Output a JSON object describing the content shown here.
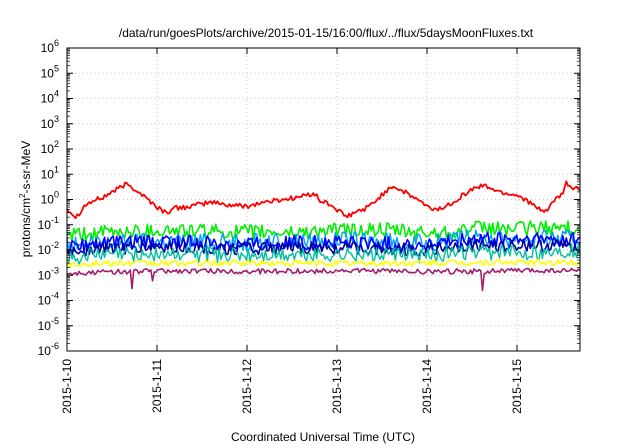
{
  "chart_data": {
    "type": "line",
    "title": "/data/run/goesPlots/archive/2015-01-15/16:00/flux/../flux/5daysMoonFluxes.txt",
    "xlabel": "Coordinated Universal Time (UTC)",
    "ylabel": {
      "base": "protons/cm",
      "sup": "2",
      "rest": "-s-sr-MeV"
    },
    "yscale": "log",
    "ylim": [
      1e-06,
      1000000.0
    ],
    "yticks": [
      {
        "exp": "-6"
      },
      {
        "exp": "-5"
      },
      {
        "exp": "-4"
      },
      {
        "exp": "-3"
      },
      {
        "exp": "-2"
      },
      {
        "exp": "-1"
      },
      {
        "exp": "0"
      },
      {
        "exp": "1"
      },
      {
        "exp": "2"
      },
      {
        "exp": "3"
      },
      {
        "exp": "4"
      },
      {
        "exp": "5"
      },
      {
        "exp": "6"
      }
    ],
    "ytick_base": "10",
    "xlim_days": [
      0,
      5.7
    ],
    "xticks": [
      "2015-1-10",
      "2015-1-11",
      "2015-1-12",
      "2015-1-13",
      "2015-1-14",
      "2015-1-15"
    ],
    "grid": true,
    "colors": {
      "red": "#ff0000",
      "green": "#00ee00",
      "blue": "#0000ff",
      "navy": "#0000a0",
      "aqua": "#00a0ff",
      "teal": "#00c0a0",
      "yellow": "#ffff00",
      "purple": "#a0206e"
    },
    "series": [
      {
        "color_key": "red",
        "width": 1.8,
        "noise": 0.1,
        "spikes": [],
        "points": [
          [
            0,
            0.45
          ],
          [
            0.1,
            0.2
          ],
          [
            0.2,
            0.6
          ],
          [
            0.3,
            0.9
          ],
          [
            0.4,
            1.2
          ],
          [
            0.5,
            2.0
          ],
          [
            0.6,
            3.0
          ],
          [
            0.65,
            4.0
          ],
          [
            0.7,
            3.5
          ],
          [
            0.8,
            2.0
          ],
          [
            0.9,
            1.0
          ],
          [
            1.0,
            0.5
          ],
          [
            1.1,
            0.3
          ],
          [
            1.2,
            0.45
          ],
          [
            1.4,
            0.55
          ],
          [
            1.6,
            0.8
          ],
          [
            1.8,
            0.6
          ],
          [
            2.0,
            0.55
          ],
          [
            2.2,
            0.8
          ],
          [
            2.4,
            1.0
          ],
          [
            2.6,
            1.3
          ],
          [
            2.75,
            1.8
          ],
          [
            2.8,
            0.9
          ],
          [
            2.9,
            0.7
          ],
          [
            3.0,
            0.4
          ],
          [
            3.1,
            0.2
          ],
          [
            3.2,
            0.3
          ],
          [
            3.35,
            0.5
          ],
          [
            3.5,
            1.5
          ],
          [
            3.6,
            3.5
          ],
          [
            3.7,
            2.5
          ],
          [
            3.8,
            1.5
          ],
          [
            3.9,
            1.0
          ],
          [
            4.0,
            0.5
          ],
          [
            4.1,
            0.4
          ],
          [
            4.2,
            0.5
          ],
          [
            4.4,
            1.5
          ],
          [
            4.5,
            2.5
          ],
          [
            4.6,
            3.5
          ],
          [
            4.7,
            3.0
          ],
          [
            4.8,
            2.0
          ],
          [
            5.0,
            1.5
          ],
          [
            5.1,
            1.0
          ],
          [
            5.2,
            0.5
          ],
          [
            5.3,
            0.3
          ],
          [
            5.4,
            0.8
          ],
          [
            5.5,
            1.5
          ],
          [
            5.55,
            4.5
          ],
          [
            5.6,
            3.0
          ],
          [
            5.7,
            2.5
          ]
        ]
      },
      {
        "color_key": "green",
        "width": 1.6,
        "noise": 0.3,
        "spikes": [],
        "points": [
          [
            0,
            0.035
          ],
          [
            0.5,
            0.05
          ],
          [
            1.0,
            0.06
          ],
          [
            1.5,
            0.055
          ],
          [
            2.0,
            0.05
          ],
          [
            2.5,
            0.05
          ],
          [
            3.0,
            0.06
          ],
          [
            3.5,
            0.06
          ],
          [
            4.0,
            0.045
          ],
          [
            4.5,
            0.07
          ],
          [
            5.0,
            0.07
          ],
          [
            5.7,
            0.08
          ]
        ]
      },
      {
        "color_key": "aqua",
        "width": 1.4,
        "noise": 0.35,
        "spikes": [],
        "points": [
          [
            0,
            0.015
          ],
          [
            0.5,
            0.02
          ],
          [
            1.0,
            0.025
          ],
          [
            2.0,
            0.02
          ],
          [
            3.0,
            0.025
          ],
          [
            4.0,
            0.018
          ],
          [
            4.5,
            0.03
          ],
          [
            5.0,
            0.03
          ],
          [
            5.7,
            0.03
          ]
        ]
      },
      {
        "color_key": "blue",
        "width": 1.6,
        "noise": 0.3,
        "spikes": [],
        "points": [
          [
            0,
            0.012
          ],
          [
            0.5,
            0.018
          ],
          [
            1.0,
            0.02
          ],
          [
            2.0,
            0.018
          ],
          [
            3.0,
            0.02
          ],
          [
            4.0,
            0.015
          ],
          [
            4.5,
            0.025
          ],
          [
            5.0,
            0.025
          ],
          [
            5.7,
            0.025
          ]
        ]
      },
      {
        "color_key": "navy",
        "width": 1.6,
        "noise": 0.25,
        "spikes": [],
        "points": [
          [
            0,
            0.008
          ],
          [
            0.5,
            0.012
          ],
          [
            1.0,
            0.012
          ],
          [
            2.0,
            0.011
          ],
          [
            3.0,
            0.012
          ],
          [
            4.0,
            0.01
          ],
          [
            4.5,
            0.015
          ],
          [
            5.0,
            0.015
          ],
          [
            5.7,
            0.015
          ]
        ]
      },
      {
        "color_key": "teal",
        "width": 1.4,
        "noise": 0.3,
        "spikes": [],
        "points": [
          [
            0,
            0.005
          ],
          [
            0.5,
            0.007
          ],
          [
            1.0,
            0.007
          ],
          [
            2.0,
            0.006
          ],
          [
            3.0,
            0.007
          ],
          [
            4.0,
            0.006
          ],
          [
            4.5,
            0.008
          ],
          [
            5.0,
            0.008
          ],
          [
            5.7,
            0.009
          ]
        ]
      },
      {
        "color_key": "yellow",
        "width": 1.6,
        "noise": 0.12,
        "spikes": [],
        "points": [
          [
            0,
            0.0028
          ],
          [
            1.0,
            0.003
          ],
          [
            2.0,
            0.003
          ],
          [
            3.0,
            0.003
          ],
          [
            4.0,
            0.003
          ],
          [
            5.0,
            0.0032
          ],
          [
            5.7,
            0.0032
          ]
        ]
      },
      {
        "color_key": "purple",
        "width": 1.6,
        "noise": 0.1,
        "spikes": [
          [
            0.72,
            0.0003
          ],
          [
            0.95,
            0.0006
          ],
          [
            4.62,
            0.00025
          ]
        ],
        "points": [
          [
            0,
            0.0012
          ],
          [
            1.0,
            0.0015
          ],
          [
            2.0,
            0.0014
          ],
          [
            3.0,
            0.0015
          ],
          [
            4.0,
            0.0014
          ],
          [
            5.0,
            0.0015
          ],
          [
            5.7,
            0.0015
          ]
        ]
      }
    ]
  }
}
